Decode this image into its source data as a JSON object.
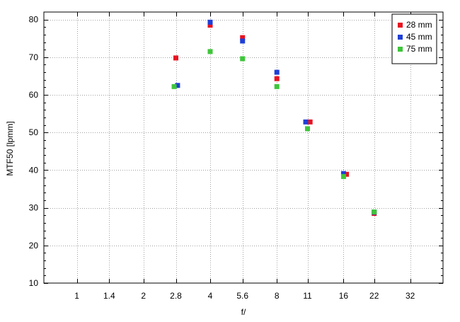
{
  "chart_data": {
    "type": "scatter",
    "title": "",
    "xlabel": "f/",
    "ylabel": "MTF50 [lpmm]",
    "x_scale": "log2",
    "x_ticks": [
      1,
      1.4,
      2,
      2.8,
      4,
      5.6,
      8,
      11,
      16,
      22,
      32
    ],
    "x_tick_labels": [
      "1",
      "1.4",
      "2",
      "2.8",
      "4",
      "5.6",
      "8",
      "11",
      "16",
      "22",
      "32"
    ],
    "xlim": [
      0.71,
      45
    ],
    "ylim": [
      10,
      82
    ],
    "y_ticks": [
      10,
      20,
      30,
      40,
      50,
      60,
      70,
      80
    ],
    "grid": true,
    "legend_position": "top-right",
    "series": [
      {
        "name": "28 mm",
        "color": "#e8121f",
        "points": [
          {
            "x": 2.8,
            "y": 69.8
          },
          {
            "x": 4,
            "y": 78.5
          },
          {
            "x": 5.6,
            "y": 75.2
          },
          {
            "x": 8,
            "y": 64.3
          },
          {
            "x": 11.3,
            "y": 52.8
          },
          {
            "x": 16.5,
            "y": 38.9
          },
          {
            "x": 22,
            "y": 28.5
          }
        ]
      },
      {
        "name": "45 mm",
        "color": "#1f3fd6",
        "points": [
          {
            "x": 2.85,
            "y": 62.5
          },
          {
            "x": 4,
            "y": 79.3
          },
          {
            "x": 5.6,
            "y": 74.3
          },
          {
            "x": 8,
            "y": 66.0
          },
          {
            "x": 10.8,
            "y": 52.8
          },
          {
            "x": 16,
            "y": 39.1
          },
          {
            "x": 22,
            "y": 28.8
          }
        ]
      },
      {
        "name": "75 mm",
        "color": "#3ec53a",
        "points": [
          {
            "x": 2.75,
            "y": 62.2
          },
          {
            "x": 4,
            "y": 71.5
          },
          {
            "x": 5.6,
            "y": 69.6
          },
          {
            "x": 8,
            "y": 62.2
          },
          {
            "x": 11,
            "y": 51.0
          },
          {
            "x": 16,
            "y": 38.3
          },
          {
            "x": 22,
            "y": 28.9
          }
        ]
      }
    ]
  }
}
